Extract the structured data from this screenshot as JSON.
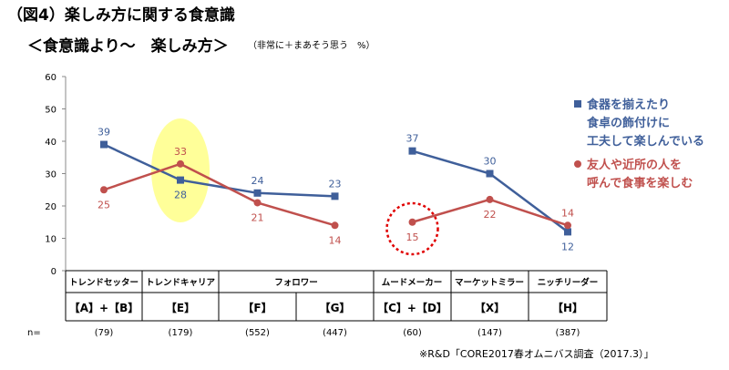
{
  "title": "（図4）楽しみ方に関する食意識",
  "subtitle": "＜食意識より～　楽しみ方＞",
  "subtitle_note": "（非常に＋まあそう思う　%）",
  "source": "※R&D「CORE2017春オムニバス調査（2017.3）」",
  "n_label": "n=",
  "colors": {
    "blue": "#3F5F9A",
    "red": "#C0504D",
    "highlight": "#FFFF99",
    "axis": "#888888"
  },
  "legend": [
    {
      "lines": [
        "食器を揃えたり",
        "食卓の飾付けに",
        "工夫して楽しんでいる"
      ],
      "color": "#3F5F9A",
      "marker": "square"
    },
    {
      "lines": [
        "友人や近所の人を",
        "呼んで食事を楽しむ"
      ],
      "color": "#C0504D",
      "marker": "circle"
    }
  ],
  "chart_data": {
    "type": "line",
    "ylim": [
      0,
      60
    ],
    "yticks": [
      0,
      10,
      20,
      30,
      40,
      50,
      60
    ],
    "grid": false,
    "segments": [
      "トレンドセッター",
      "トレンドキャリア",
      "フォロワー",
      "ムードメーカー",
      "マーケットミラー",
      "ニッチリーダー"
    ],
    "categories": [
      "【A】+【B】",
      "【E】",
      "【F】",
      "【G】",
      "【C】+【D】",
      "【X】",
      "【H】"
    ],
    "n": [
      "(79)",
      "(179)",
      "(552)",
      "(447)",
      "(60)",
      "(147)",
      "(387)"
    ],
    "series": [
      {
        "name": "食器を揃えたり食卓の飾付けに工夫して楽しんでいる",
        "color": "#3F5F9A",
        "marker": "square",
        "groups": [
          [
            39,
            28,
            24,
            23
          ],
          [
            37,
            30,
            12
          ]
        ]
      },
      {
        "name": "友人や近所の人を呼んで食事を楽しむ",
        "color": "#C0504D",
        "marker": "circle",
        "groups": [
          [
            25,
            33,
            21,
            14
          ],
          [
            15,
            22,
            14
          ]
        ]
      }
    ],
    "highlight_ellipse_category": "【E】",
    "dashed_circle": {
      "category": "【C】+【D】",
      "series": "友人や近所の人を呼んで食事を楽しむ"
    }
  }
}
